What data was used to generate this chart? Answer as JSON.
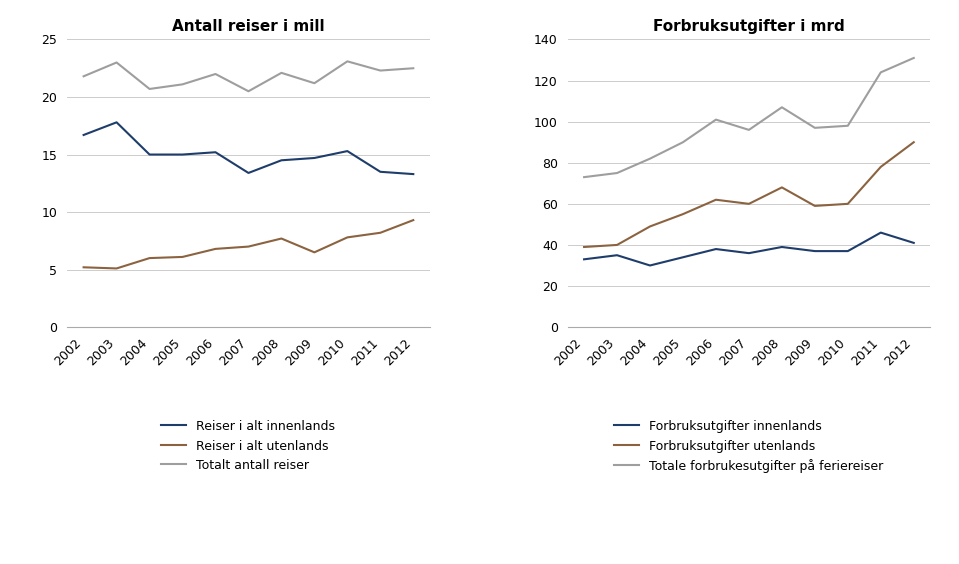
{
  "years": [
    2002,
    2003,
    2004,
    2005,
    2006,
    2007,
    2008,
    2009,
    2010,
    2011,
    2012
  ],
  "left": {
    "title": "Antall reiser i mill",
    "innenlands": [
      16.7,
      17.8,
      15.0,
      15.0,
      15.2,
      13.4,
      14.5,
      14.7,
      15.3,
      13.5,
      13.3
    ],
    "utenlands": [
      5.2,
      5.1,
      6.0,
      6.1,
      6.8,
      7.0,
      7.7,
      6.5,
      7.8,
      8.2,
      9.3
    ],
    "totalt": [
      21.8,
      23.0,
      20.7,
      21.1,
      22.0,
      20.5,
      22.1,
      21.2,
      23.1,
      22.3,
      22.5
    ],
    "ylim": [
      0,
      25
    ],
    "yticks": [
      0,
      5,
      10,
      15,
      20,
      25
    ],
    "legend": [
      "Reiser i alt innenlands",
      "Reiser i alt utenlands",
      "Totalt antall reiser"
    ]
  },
  "right": {
    "title": "Forbruksutgifter i mrd",
    "innenlands": [
      33,
      35,
      30,
      34,
      38,
      36,
      39,
      37,
      37,
      46,
      41
    ],
    "utenlands": [
      39,
      40,
      49,
      55,
      62,
      60,
      68,
      59,
      60,
      78,
      90
    ],
    "totalt": [
      73,
      75,
      82,
      90,
      101,
      96,
      107,
      97,
      98,
      124,
      131
    ],
    "ylim": [
      0,
      140
    ],
    "yticks": [
      0,
      20,
      40,
      60,
      80,
      100,
      120,
      140
    ],
    "legend": [
      "Forbruksutgifter innenlands",
      "Forbruksutgifter utenlands",
      "Totale forbrukesutgifter på feriereiser"
    ]
  },
  "color_dark": "#1F3D6B",
  "color_brown": "#8B6340",
  "color_gray": "#9E9E9E",
  "line_width": 1.5,
  "bg_color": "#ffffff",
  "grid_color": "#cccccc",
  "title_fontsize": 11,
  "tick_fontsize": 9,
  "legend_fontsize": 9
}
